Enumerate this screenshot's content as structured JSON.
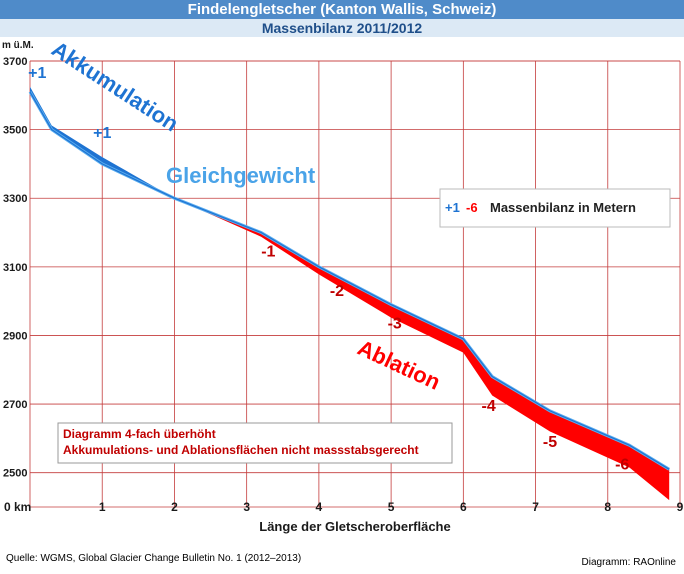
{
  "header": {
    "title": "Findelengletscher (Kanton Wallis, Schweiz)",
    "subtitle": "Massenbilanz 2011/2012"
  },
  "footer": {
    "source": "Quelle: WGMS, Global Glacier Change Bulletin No. 1 (2012–2013)",
    "credit": "Diagramm: RAOnline"
  },
  "chart_data": {
    "type": "area",
    "title": "Findelengletscher (Kanton Wallis, Schweiz)",
    "subtitle": "Massenbilanz 2011/2012",
    "xlabel": "Länge der Gletscheroberfläche",
    "ylabel": "m ü.M.",
    "x_unit_label": "0 km",
    "xlim": [
      0,
      9
    ],
    "ylim": [
      2400,
      3700
    ],
    "x_ticks": [
      0,
      1,
      2,
      3,
      4,
      5,
      6,
      7,
      8,
      9
    ],
    "y_ticks": [
      2500,
      2700,
      2900,
      3100,
      3300,
      3500,
      3700
    ],
    "grid": true,
    "colors": {
      "accumulation": "#1e73d2",
      "accumulation_light": "#5aaef0",
      "ablation": "#ff0000",
      "grid": "#c43c3c",
      "axis_label": "#1a1a1a",
      "ablation_label": "#c00000",
      "zone_ablation": "#ff0000",
      "zone_accumulation": "#1e73d2",
      "zone_equilibrium": "#4aa3e8"
    },
    "series": [
      {
        "name": "Gletscheroberfläche",
        "x": [
          0,
          0.3,
          1.0,
          2.0,
          3.2,
          4.0,
          5.0,
          6.0,
          6.4,
          7.2,
          8.3,
          8.85
        ],
        "y": [
          3610,
          3500,
          3400,
          3300,
          3200,
          3100,
          2990,
          2890,
          2780,
          2680,
          2580,
          2510
        ]
      }
    ],
    "balance_offsets": {
      "x": [
        0,
        0.3,
        1.0,
        2.0,
        3.2,
        4.0,
        5.0,
        6.0,
        6.4,
        7.2,
        8.3,
        8.85
      ],
      "dy": [
        15,
        12,
        20,
        0,
        -12,
        -22,
        -38,
        -40,
        -55,
        -60,
        -65,
        -90
      ]
    },
    "annotations": {
      "zone_accumulation": "Akkumulation",
      "zone_equilibrium": "Gleichgewicht",
      "zone_ablation": "Ablation",
      "balance_labels": [
        {
          "text": "+1",
          "x": 0.1,
          "y": 3650,
          "kind": "plus"
        },
        {
          "text": "+1",
          "x": 1.0,
          "y": 3475,
          "kind": "plus"
        },
        {
          "text": "-1",
          "x": 3.3,
          "y": 3130,
          "kind": "minus"
        },
        {
          "text": "-2",
          "x": 4.25,
          "y": 3015,
          "kind": "minus"
        },
        {
          "text": "-3",
          "x": 5.05,
          "y": 2920,
          "kind": "minus"
        },
        {
          "text": "-4",
          "x": 6.35,
          "y": 2680,
          "kind": "minus"
        },
        {
          "text": "-5",
          "x": 7.2,
          "y": 2575,
          "kind": "minus"
        },
        {
          "text": "-6",
          "x": 8.2,
          "y": 2510,
          "kind": "minus"
        }
      ]
    },
    "legend": {
      "placement": "top-right",
      "plus": "+1",
      "minus": "-6",
      "text": "Massenbilanz in Metern"
    },
    "note": {
      "placement": "bottom-left",
      "lines": [
        "Diagramm 4-fach überhöht",
        "Akkumulations- und Ablationsflächen nicht massstabsgerecht"
      ]
    }
  }
}
